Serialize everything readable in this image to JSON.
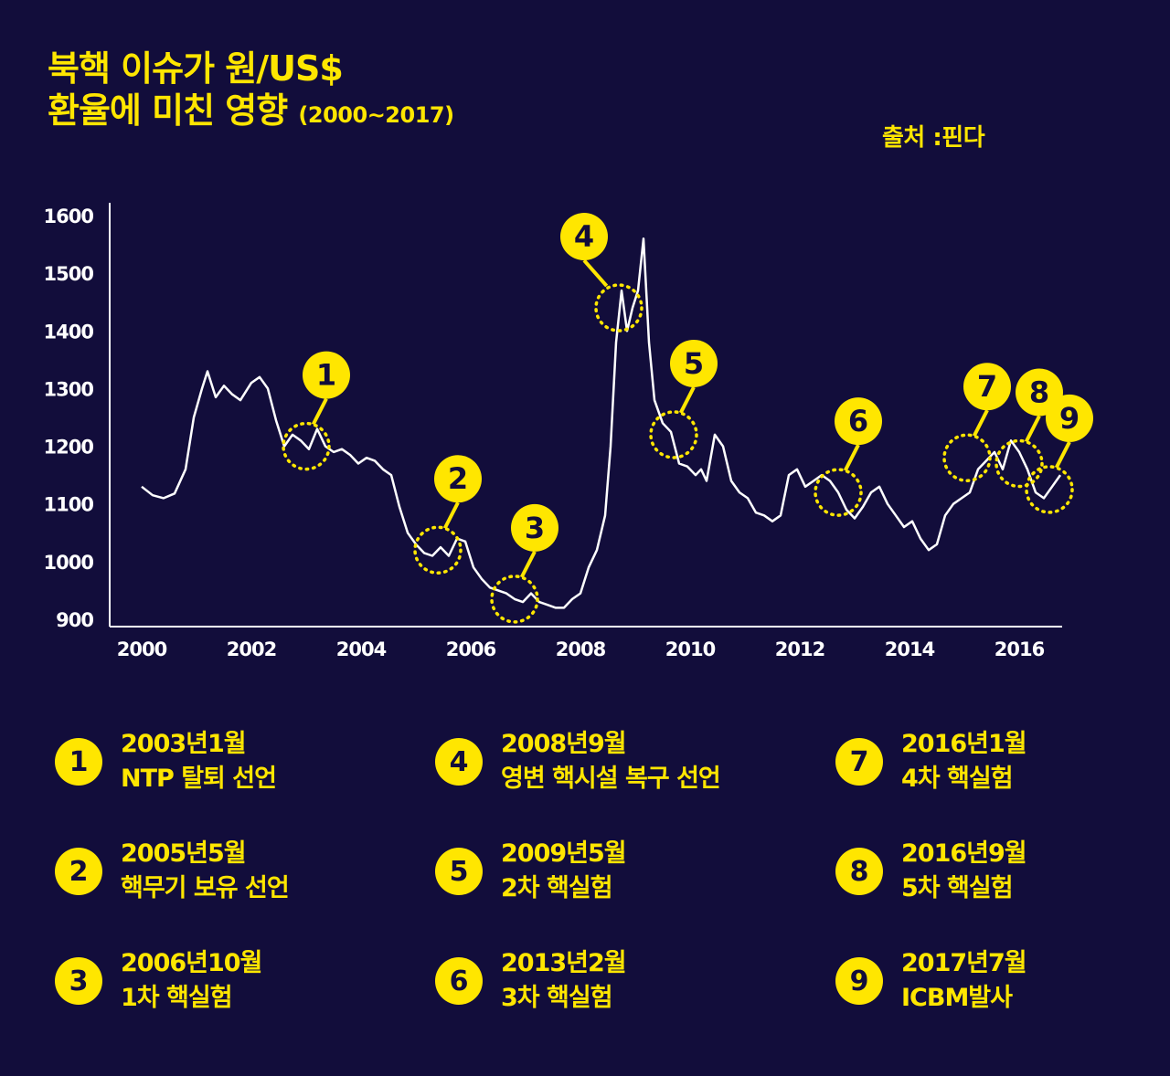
{
  "title": {
    "line1": "북핵 이슈가 원/US$",
    "line2": "환율에 미친 영향",
    "period": "(2000~2017)"
  },
  "source": "출처 :핀다",
  "colors": {
    "background": "#120d3b",
    "accent": "#ffe600",
    "line": "#ffffff"
  },
  "chart_data": {
    "type": "line",
    "title": "북핵 이슈가 원/US$ 환율에 미친 영향",
    "xlabel": "",
    "ylabel": "",
    "xlim": [
      1999.6,
      2016.9
    ],
    "ylim": [
      900,
      1620
    ],
    "x_ticks": [
      "2000",
      "2002",
      "2004",
      "2006",
      "2008",
      "2010",
      "2012",
      "2014",
      "2016"
    ],
    "y_ticks": [
      "900",
      "1000",
      "1100",
      "1200",
      "1300",
      "1400",
      "1500",
      "1600"
    ],
    "grid": false,
    "series": [
      {
        "points": [
          [
            2000.0,
            1130
          ],
          [
            2000.2,
            1115
          ],
          [
            2000.4,
            1110
          ],
          [
            2000.6,
            1118
          ],
          [
            2000.8,
            1160
          ],
          [
            2000.95,
            1250
          ],
          [
            2001.1,
            1300
          ],
          [
            2001.2,
            1330
          ],
          [
            2001.35,
            1285
          ],
          [
            2001.5,
            1305
          ],
          [
            2001.65,
            1290
          ],
          [
            2001.8,
            1280
          ],
          [
            2002.0,
            1310
          ],
          [
            2002.15,
            1320
          ],
          [
            2002.3,
            1300
          ],
          [
            2002.45,
            1245
          ],
          [
            2002.6,
            1200
          ],
          [
            2002.75,
            1220
          ],
          [
            2002.9,
            1210
          ],
          [
            2003.05,
            1195
          ],
          [
            2003.2,
            1230
          ],
          [
            2003.35,
            1200
          ],
          [
            2003.5,
            1190
          ],
          [
            2003.65,
            1195
          ],
          [
            2003.8,
            1185
          ],
          [
            2003.95,
            1170
          ],
          [
            2004.1,
            1180
          ],
          [
            2004.25,
            1175
          ],
          [
            2004.4,
            1160
          ],
          [
            2004.55,
            1150
          ],
          [
            2004.7,
            1095
          ],
          [
            2004.85,
            1050
          ],
          [
            2005.0,
            1030
          ],
          [
            2005.15,
            1015
          ],
          [
            2005.3,
            1010
          ],
          [
            2005.45,
            1025
          ],
          [
            2005.6,
            1010
          ],
          [
            2005.75,
            1040
          ],
          [
            2005.9,
            1035
          ],
          [
            2006.05,
            990
          ],
          [
            2006.2,
            970
          ],
          [
            2006.35,
            955
          ],
          [
            2006.5,
            950
          ],
          [
            2006.65,
            945
          ],
          [
            2006.8,
            935
          ],
          [
            2006.95,
            930
          ],
          [
            2007.1,
            945
          ],
          [
            2007.25,
            930
          ],
          [
            2007.4,
            925
          ],
          [
            2007.55,
            920
          ],
          [
            2007.7,
            920
          ],
          [
            2007.85,
            935
          ],
          [
            2008.0,
            945
          ],
          [
            2008.15,
            990
          ],
          [
            2008.3,
            1020
          ],
          [
            2008.45,
            1080
          ],
          [
            2008.55,
            1200
          ],
          [
            2008.65,
            1380
          ],
          [
            2008.75,
            1470
          ],
          [
            2008.85,
            1400
          ],
          [
            2008.95,
            1440
          ],
          [
            2009.05,
            1470
          ],
          [
            2009.15,
            1560
          ],
          [
            2009.25,
            1380
          ],
          [
            2009.35,
            1280
          ],
          [
            2009.5,
            1240
          ],
          [
            2009.65,
            1225
          ],
          [
            2009.8,
            1170
          ],
          [
            2009.95,
            1165
          ],
          [
            2010.1,
            1150
          ],
          [
            2010.2,
            1160
          ],
          [
            2010.3,
            1140
          ],
          [
            2010.45,
            1220
          ],
          [
            2010.6,
            1200
          ],
          [
            2010.75,
            1140
          ],
          [
            2010.9,
            1120
          ],
          [
            2011.05,
            1110
          ],
          [
            2011.2,
            1085
          ],
          [
            2011.35,
            1080
          ],
          [
            2011.5,
            1070
          ],
          [
            2011.65,
            1080
          ],
          [
            2011.8,
            1150
          ],
          [
            2011.95,
            1160
          ],
          [
            2012.1,
            1130
          ],
          [
            2012.25,
            1140
          ],
          [
            2012.4,
            1150
          ],
          [
            2012.55,
            1140
          ],
          [
            2012.7,
            1120
          ],
          [
            2012.85,
            1090
          ],
          [
            2013.0,
            1075
          ],
          [
            2013.15,
            1095
          ],
          [
            2013.3,
            1120
          ],
          [
            2013.45,
            1130
          ],
          [
            2013.6,
            1100
          ],
          [
            2013.75,
            1080
          ],
          [
            2013.9,
            1060
          ],
          [
            2014.05,
            1070
          ],
          [
            2014.2,
            1040
          ],
          [
            2014.35,
            1020
          ],
          [
            2014.5,
            1030
          ],
          [
            2014.65,
            1080
          ],
          [
            2014.8,
            1100
          ],
          [
            2014.95,
            1110
          ],
          [
            2015.1,
            1120
          ],
          [
            2015.25,
            1160
          ],
          [
            2015.4,
            1175
          ],
          [
            2015.55,
            1190
          ],
          [
            2015.7,
            1160
          ],
          [
            2015.85,
            1210
          ],
          [
            2016.0,
            1190
          ],
          [
            2016.15,
            1160
          ],
          [
            2016.3,
            1120
          ],
          [
            2016.45,
            1110
          ],
          [
            2016.6,
            1130
          ],
          [
            2016.75,
            1150
          ]
        ]
      }
    ],
    "annotations": [
      {
        "label": "1",
        "x": 2003.0,
        "y": 1200
      },
      {
        "label": "2",
        "x": 2005.4,
        "y": 1020
      },
      {
        "label": "3",
        "x": 2006.8,
        "y": 935
      },
      {
        "label": "4",
        "x": 2008.7,
        "y": 1440
      },
      {
        "label": "5",
        "x": 2009.7,
        "y": 1220
      },
      {
        "label": "6",
        "x": 2012.7,
        "y": 1120
      },
      {
        "label": "7",
        "x": 2015.05,
        "y": 1180
      },
      {
        "label": "8",
        "x": 2016.0,
        "y": 1170
      },
      {
        "label": "9",
        "x": 2016.55,
        "y": 1125
      }
    ]
  },
  "legend": [
    {
      "num": "1",
      "line1": "2003년1월",
      "line2": "NTP 탈퇴 선언"
    },
    {
      "num": "2",
      "line1": "2005년5월",
      "line2": "핵무기 보유 선언"
    },
    {
      "num": "3",
      "line1": "2006년10월",
      "line2": "1차 핵실험"
    },
    {
      "num": "4",
      "line1": "2008년9월",
      "line2": "영변 핵시설 복구 선언"
    },
    {
      "num": "5",
      "line1": "2009년5월",
      "line2": "2차 핵실험"
    },
    {
      "num": "6",
      "line1": "2013년2월",
      "line2": "3차 핵실험"
    },
    {
      "num": "7",
      "line1": "2016년1월",
      "line2": "4차 핵실험"
    },
    {
      "num": "8",
      "line1": "2016년9월",
      "line2": "5차 핵실험"
    },
    {
      "num": "9",
      "line1": "2017년7월",
      "line2": "ICBM발사"
    }
  ]
}
